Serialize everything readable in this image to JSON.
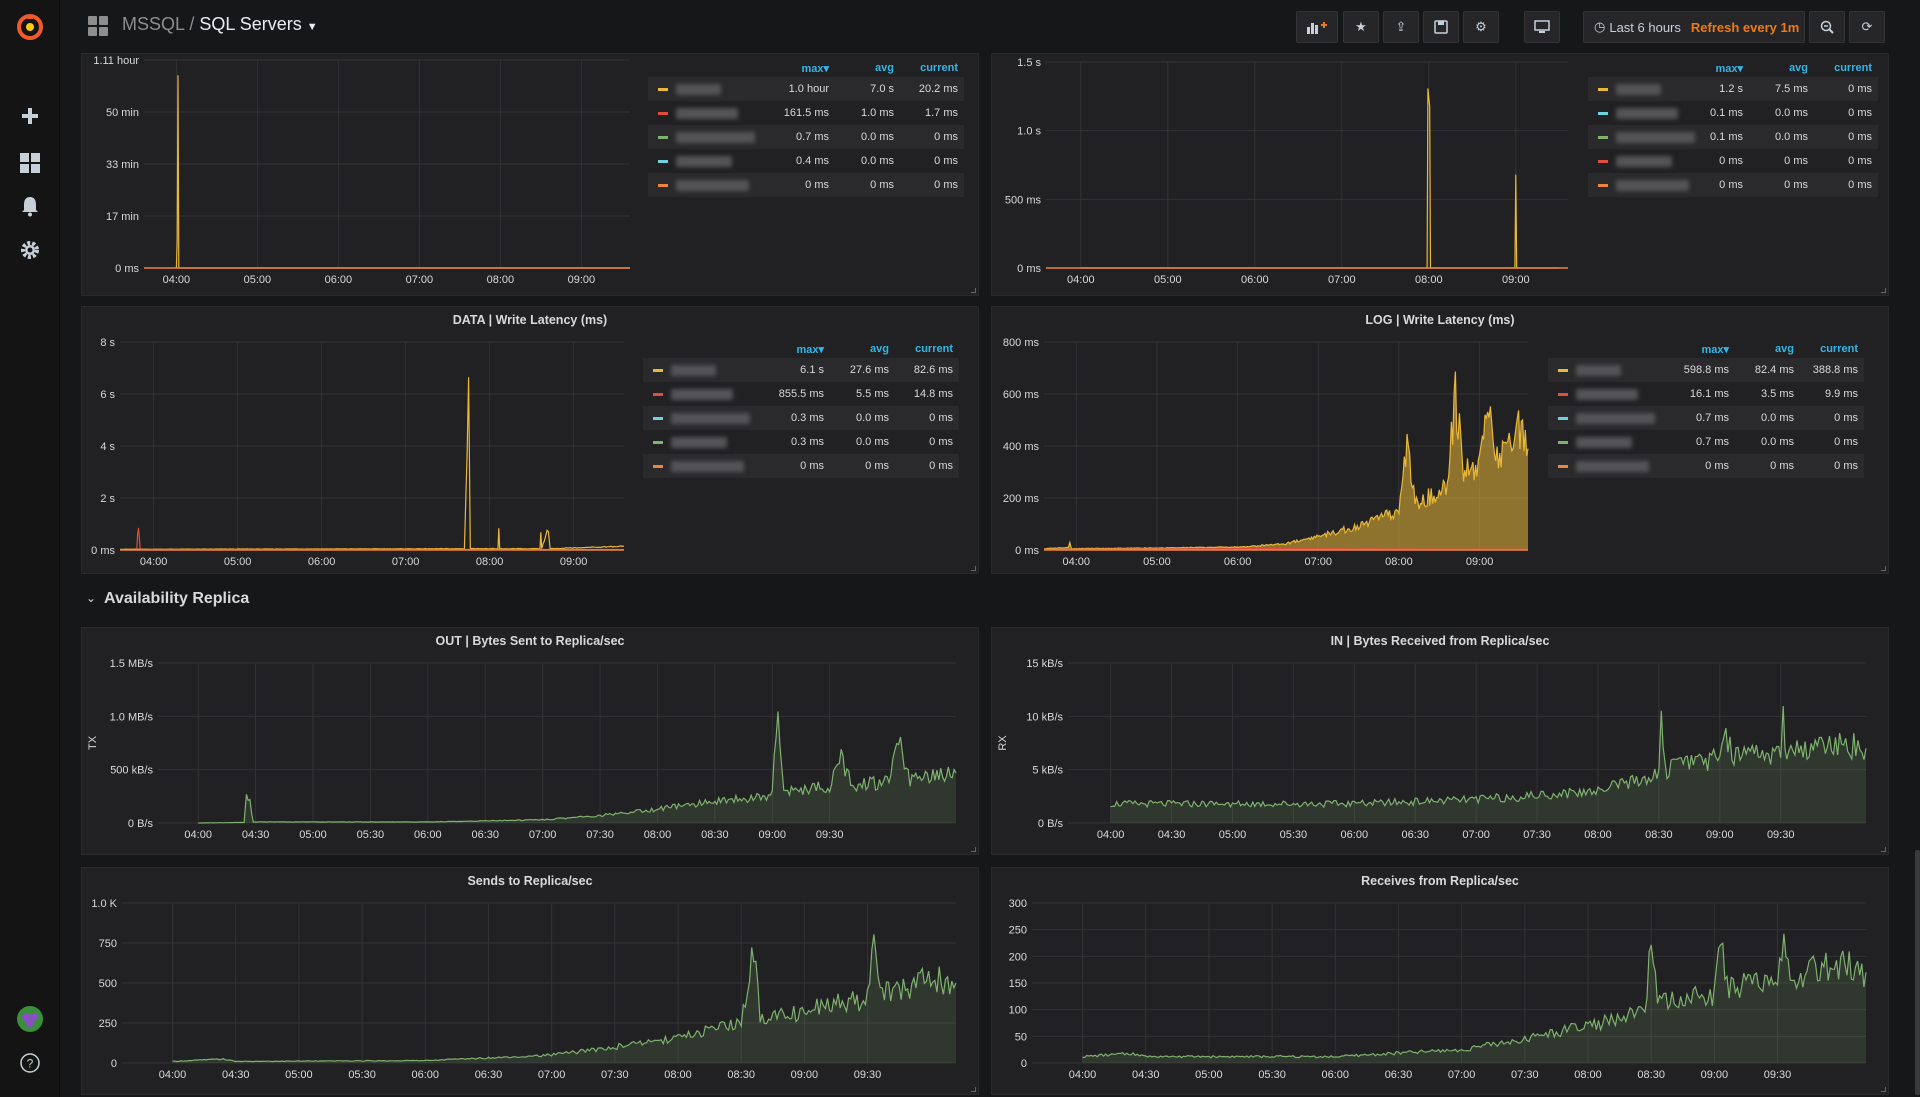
{
  "breadcrumb": {
    "folder": "MSSQL",
    "separator": "/",
    "dashboard": "SQL Servers"
  },
  "toolbar": {
    "time_range": "Last 6 hours",
    "refresh": "Refresh every 1m"
  },
  "row": {
    "title": "Availability Replica"
  },
  "colors": {
    "yellow": "#eab839",
    "red": "#e24d42",
    "green": "#7eb26d",
    "cyan": "#6ed0e0",
    "orange": "#ef843c",
    "accent": "#33b5e5"
  },
  "legend_headers": {
    "max": "max▾",
    "avg": "avg",
    "current": "current"
  },
  "panels": {
    "p1": {
      "title": "",
      "legend": [
        {
          "color": "#eab839",
          "max": "1.0 hour",
          "avg": "7.0 s",
          "current": "20.2 ms"
        },
        {
          "color": "#e24d42",
          "max": "161.5 ms",
          "avg": "1.0 ms",
          "current": "1.7 ms"
        },
        {
          "color": "#7eb26d",
          "max": "0.7 ms",
          "avg": "0.0 ms",
          "current": "0 ms"
        },
        {
          "color": "#6ed0e0",
          "max": "0.4 ms",
          "avg": "0.0 ms",
          "current": "0 ms"
        },
        {
          "color": "#ef843c",
          "max": "0 ms",
          "avg": "0 ms",
          "current": "0 ms"
        }
      ]
    },
    "p2": {
      "title": "",
      "legend": [
        {
          "color": "#eab839",
          "max": "1.2 s",
          "avg": "7.5 ms",
          "current": "0 ms"
        },
        {
          "color": "#6ed0e0",
          "max": "0.1 ms",
          "avg": "0.0 ms",
          "current": "0 ms"
        },
        {
          "color": "#7eb26d",
          "max": "0.1 ms",
          "avg": "0.0 ms",
          "current": "0 ms"
        },
        {
          "color": "#e24d42",
          "max": "0 ms",
          "avg": "0 ms",
          "current": "0 ms"
        },
        {
          "color": "#ef843c",
          "max": "0 ms",
          "avg": "0 ms",
          "current": "0 ms"
        }
      ]
    },
    "p3": {
      "title": "DATA | Write Latency (ms)",
      "legend": [
        {
          "color": "#eab839",
          "max": "6.1 s",
          "avg": "27.6 ms",
          "current": "82.6 ms"
        },
        {
          "color": "#e24d42",
          "max": "855.5 ms",
          "avg": "5.5 ms",
          "current": "14.8 ms"
        },
        {
          "color": "#6ed0e0",
          "max": "0.3 ms",
          "avg": "0.0 ms",
          "current": "0 ms"
        },
        {
          "color": "#7eb26d",
          "max": "0.3 ms",
          "avg": "0.0 ms",
          "current": "0 ms"
        },
        {
          "color": "#ef843c",
          "max": "0 ms",
          "avg": "0 ms",
          "current": "0 ms"
        }
      ]
    },
    "p4": {
      "title": "LOG | Write Latency (ms)",
      "legend": [
        {
          "color": "#eab839",
          "max": "598.8 ms",
          "avg": "82.4 ms",
          "current": "388.8 ms"
        },
        {
          "color": "#e24d42",
          "max": "16.1 ms",
          "avg": "3.5 ms",
          "current": "9.9 ms"
        },
        {
          "color": "#6ed0e0",
          "max": "0.7 ms",
          "avg": "0.0 ms",
          "current": "0 ms"
        },
        {
          "color": "#7eb26d",
          "max": "0.7 ms",
          "avg": "0.0 ms",
          "current": "0 ms"
        },
        {
          "color": "#ef843c",
          "max": "0 ms",
          "avg": "0 ms",
          "current": "0 ms"
        }
      ]
    },
    "p5": {
      "title": "OUT | Bytes Sent to Replica/sec",
      "ylabel": "TX"
    },
    "p6": {
      "title": "IN | Bytes Received from Replica/sec",
      "ylabel": "RX"
    },
    "p7": {
      "title": "Sends to Replica/sec"
    },
    "p8": {
      "title": "Receives from Replica/sec"
    }
  },
  "chart_data": [
    {
      "id": "p1",
      "type": "line",
      "title": "",
      "y_ticks": [
        "0 ms",
        "17 min",
        "33 min",
        "50 min",
        "1.11 hour"
      ],
      "x_ticks": [
        "04:00",
        "05:00",
        "06:00",
        "07:00",
        "08:00",
        "09:00"
      ],
      "ylim": [
        0,
        66.6
      ],
      "y_unit": "min",
      "series": [
        {
          "color": "#eab839",
          "points": [
            [
              0.4,
              0
            ],
            [
              0.41,
              10
            ],
            [
              0.42,
              60
            ],
            [
              0.43,
              0
            ],
            [
              6.0,
              0
            ]
          ]
        }
      ]
    },
    {
      "id": "p2",
      "type": "line",
      "title": "",
      "y_ticks": [
        "0 ms",
        "500 ms",
        "1.0 s",
        "1.5 s"
      ],
      "x_ticks": [
        "04:00",
        "05:00",
        "06:00",
        "07:00",
        "08:00",
        "09:00"
      ],
      "ylim": [
        0,
        1.5
      ],
      "y_unit": "s",
      "series": [
        {
          "color": "#eab839",
          "points": [
            [
              0.4,
              0
            ],
            [
              4.38,
              0
            ],
            [
              4.39,
              1.25
            ],
            [
              4.41,
              1.15
            ],
            [
              4.42,
              0
            ],
            [
              5.39,
              0
            ],
            [
              5.4,
              0.6
            ],
            [
              5.41,
              0
            ],
            [
              5.9,
              0
            ]
          ]
        }
      ]
    },
    {
      "id": "p3",
      "type": "line",
      "title": "DATA | Write Latency (ms)",
      "y_ticks": [
        "0 ms",
        "2 s",
        "4 s",
        "6 s",
        "8 s"
      ],
      "x_ticks": [
        "04:00",
        "05:00",
        "06:00",
        "07:00",
        "08:00",
        "09:00"
      ],
      "ylim": [
        0,
        8
      ],
      "y_unit": "s",
      "series": [
        {
          "color": "#eab839",
          "points": [
            [
              0.0,
              0.03
            ],
            [
              4.1,
              0.05
            ],
            [
              4.15,
              6.1
            ],
            [
              4.17,
              0.05
            ],
            [
              4.5,
              0.05
            ],
            [
              4.51,
              0.9
            ],
            [
              4.52,
              0.05
            ],
            [
              5.0,
              0.05
            ],
            [
              5.01,
              0.6
            ],
            [
              5.02,
              0.05
            ],
            [
              5.1,
              0.8
            ],
            [
              5.12,
              0.05
            ],
            [
              6.0,
              0.15
            ]
          ]
        },
        {
          "color": "#e24d42",
          "points": [
            [
              0.2,
              0.02
            ],
            [
              0.21,
              0.6
            ],
            [
              0.22,
              0.85
            ],
            [
              0.23,
              0.5
            ],
            [
              0.24,
              0.02
            ],
            [
              6.0,
              0.02
            ]
          ]
        }
      ]
    },
    {
      "id": "p4",
      "type": "area",
      "title": "LOG | Write Latency (ms)",
      "y_ticks": [
        "0 ms",
        "200 ms",
        "400 ms",
        "600 ms",
        "800 ms"
      ],
      "x_ticks": [
        "04:00",
        "05:00",
        "06:00",
        "07:00",
        "08:00",
        "09:00"
      ],
      "ylim": [
        0,
        800
      ],
      "y_unit": "ms",
      "series": [
        {
          "color": "#eab839",
          "points": [
            [
              0.0,
              5
            ],
            [
              0.3,
              10
            ],
            [
              0.32,
              35
            ],
            [
              0.34,
              5
            ],
            [
              1.5,
              8
            ],
            [
              2.5,
              12
            ],
            [
              3.0,
              25
            ],
            [
              3.5,
              60
            ],
            [
              4.0,
              100
            ],
            [
              4.4,
              150
            ],
            [
              4.5,
              420
            ],
            [
              4.6,
              170
            ],
            [
              4.8,
              210
            ],
            [
              5.0,
              250
            ],
            [
              5.1,
              598
            ],
            [
              5.2,
              300
            ],
            [
              5.4,
              330
            ],
            [
              5.5,
              560
            ],
            [
              5.6,
              360
            ],
            [
              5.8,
              400
            ],
            [
              5.9,
              470
            ],
            [
              6.0,
              390
            ]
          ]
        },
        {
          "color": "#e24d42",
          "points": [
            [
              0.0,
              2
            ],
            [
              6.0,
              10
            ]
          ]
        }
      ]
    },
    {
      "id": "p5",
      "type": "area",
      "title": "OUT | Bytes Sent to Replica/sec",
      "ylabel": "TX",
      "y_ticks": [
        "0 B/s",
        "500 kB/s",
        "1.0 MB/s",
        "1.5 MB/s"
      ],
      "x_ticks": [
        "04:00",
        "04:30",
        "05:00",
        "05:30",
        "06:00",
        "06:30",
        "07:00",
        "07:30",
        "08:00",
        "08:30",
        "09:00",
        "09:30"
      ],
      "ylim": [
        0,
        1500
      ],
      "y_unit": "kB/s",
      "series": [
        {
          "color": "#7eb26d",
          "points": [
            [
              0.0,
              0
            ],
            [
              0.4,
              5
            ],
            [
              0.42,
              250
            ],
            [
              0.45,
              200
            ],
            [
              0.48,
              10
            ],
            [
              2.0,
              10
            ],
            [
              3.0,
              30
            ],
            [
              3.5,
              70
            ],
            [
              4.0,
              130
            ],
            [
              4.5,
              200
            ],
            [
              5.0,
              260
            ],
            [
              5.05,
              1170
            ],
            [
              5.1,
              300
            ],
            [
              5.5,
              340
            ],
            [
              5.6,
              600
            ],
            [
              5.7,
              360
            ],
            [
              6.0,
              380
            ],
            [
              6.1,
              780
            ],
            [
              6.2,
              400
            ],
            [
              6.6,
              470
            ]
          ]
        }
      ]
    },
    {
      "id": "p6",
      "type": "area",
      "title": "IN | Bytes Received from Replica/sec",
      "ylabel": "RX",
      "y_ticks": [
        "0 B/s",
        "5 kB/s",
        "10 kB/s",
        "15 kB/s"
      ],
      "x_ticks": [
        "04:00",
        "04:30",
        "05:00",
        "05:30",
        "06:00",
        "06:30",
        "07:00",
        "07:30",
        "08:00",
        "08:30",
        "09:00",
        "09:30"
      ],
      "ylim": [
        0,
        15
      ],
      "y_unit": "kB/s",
      "series": [
        {
          "color": "#7eb26d",
          "points": [
            [
              0.0,
              1.8
            ],
            [
              1.0,
              1.8
            ],
            [
              2.0,
              1.8
            ],
            [
              3.0,
              2.2
            ],
            [
              4.0,
              3.0
            ],
            [
              4.5,
              4.5
            ],
            [
              4.52,
              9.3
            ],
            [
              4.55,
              5.0
            ],
            [
              4.8,
              5.5
            ],
            [
              5.0,
              6.0
            ],
            [
              5.05,
              8.5
            ],
            [
              5.1,
              6.1
            ],
            [
              5.5,
              6.5
            ],
            [
              5.52,
              10.2
            ],
            [
              5.55,
              6.6
            ],
            [
              6.0,
              7.4
            ],
            [
              6.2,
              7.0
            ]
          ]
        }
      ]
    },
    {
      "id": "p7",
      "type": "area",
      "title": "Sends to Replica/sec",
      "y_ticks": [
        "0",
        "250",
        "500",
        "750",
        "1.0 K"
      ],
      "x_ticks": [
        "04:00",
        "04:30",
        "05:00",
        "05:30",
        "06:00",
        "06:30",
        "07:00",
        "07:30",
        "08:00",
        "08:30",
        "09:00",
        "09:30"
      ],
      "ylim": [
        0,
        1000
      ],
      "y_unit": "",
      "series": [
        {
          "color": "#7eb26d",
          "points": [
            [
              0.0,
              10
            ],
            [
              0.4,
              25
            ],
            [
              0.5,
              10
            ],
            [
              2.0,
              15
            ],
            [
              3.0,
              50
            ],
            [
              3.5,
              100
            ],
            [
              4.0,
              160
            ],
            [
              4.5,
              250
            ],
            [
              4.6,
              700
            ],
            [
              4.65,
              280
            ],
            [
              5.0,
              320
            ],
            [
              5.2,
              370
            ],
            [
              5.5,
              400
            ],
            [
              5.55,
              780
            ],
            [
              5.6,
              420
            ],
            [
              6.0,
              520
            ],
            [
              6.2,
              500
            ]
          ]
        }
      ]
    },
    {
      "id": "p8",
      "type": "area",
      "title": "Receives from Replica/sec",
      "y_ticks": [
        "0",
        "50",
        "100",
        "150",
        "200",
        "250",
        "300"
      ],
      "x_ticks": [
        "04:00",
        "04:30",
        "05:00",
        "05:30",
        "06:00",
        "06:30",
        "07:00",
        "07:30",
        "08:00",
        "08:30",
        "09:00",
        "09:30"
      ],
      "ylim": [
        0,
        300
      ],
      "y_unit": "",
      "series": [
        {
          "color": "#7eb26d",
          "points": [
            [
              0.0,
              12
            ],
            [
              0.4,
              18
            ],
            [
              0.5,
              12
            ],
            [
              2.0,
              12
            ],
            [
              3.0,
              25
            ],
            [
              3.5,
              45
            ],
            [
              4.0,
              70
            ],
            [
              4.45,
              95
            ],
            [
              4.5,
              245
            ],
            [
              4.55,
              110
            ],
            [
              5.0,
              130
            ],
            [
              5.05,
              220
            ],
            [
              5.1,
              140
            ],
            [
              5.5,
              150
            ],
            [
              5.55,
              270
            ],
            [
              5.6,
              160
            ],
            [
              6.0,
              185
            ],
            [
              6.2,
              170
            ]
          ]
        }
      ]
    }
  ]
}
